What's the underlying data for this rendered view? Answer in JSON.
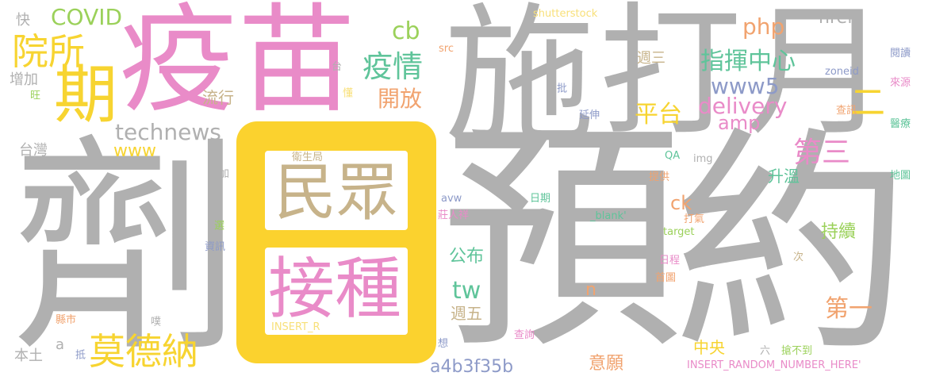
{
  "words": {
    "w01": "劑",
    "w02": "預",
    "w03": "約",
    "w04": "施",
    "w05": "打",
    "w06": "月",
    "w07": "疫",
    "w08": "苗",
    "w09": "日",
    "w10": "民眾",
    "w11": "接種",
    "w12": "期",
    "w13": "院所",
    "w14": "COVID",
    "w15": "疫情",
    "w16": "開放",
    "w17": "technews",
    "w18": "www",
    "w19": "流行",
    "w20": "衛生局",
    "w21": "cb",
    "w22": "php",
    "w23": "週三",
    "w24": "指揮中心",
    "w25": "www5",
    "w26": "delivery",
    "w27": "amp",
    "w28": "平台",
    "w29": "href",
    "w30": "二",
    "w31": "第三",
    "w32": "升溫",
    "w33": "ck",
    "w34": "持續",
    "w35": "公布",
    "w36": "tw",
    "w37": "週五",
    "w38": "n",
    "w39": "第一",
    "w40": "中央",
    "w41": "意願",
    "w42": "a4b3f35b",
    "w43": "莫德納",
    "w44": "台灣",
    "w45": "增加",
    "w46": "旺",
    "w47": "快",
    "w48": "本土",
    "w49": "a",
    "w50": "抵",
    "w51": "縣市",
    "w52": "噗",
    "w53": "選",
    "w54": "資訊",
    "w55": "追加",
    "w56": "INSERT_R",
    "w57": "shutterstock",
    "w58": "src",
    "w59": "台",
    "w60": "懂",
    "w61": "批",
    "w62": "延伸",
    "w63": "zoneid",
    "w64": "閱讀",
    "w65": "來源",
    "w66": "醫療",
    "w67": "查訊",
    "w68": "地圖",
    "w69": "QA",
    "w70": "img",
    "w71": "提供",
    "w72": "avw",
    "w73": "日期",
    "w74": "_blank'",
    "w75": "莊人祥",
    "w76": "打氣",
    "w77": "target",
    "w78": "日程",
    "w79": "首圖",
    "w80": "次",
    "w81": "想",
    "w82": "查詢",
    "w83": "六",
    "w84": "搶不到",
    "w85": "INSERT_RANDOM_NUMBER_HERE'"
  }
}
